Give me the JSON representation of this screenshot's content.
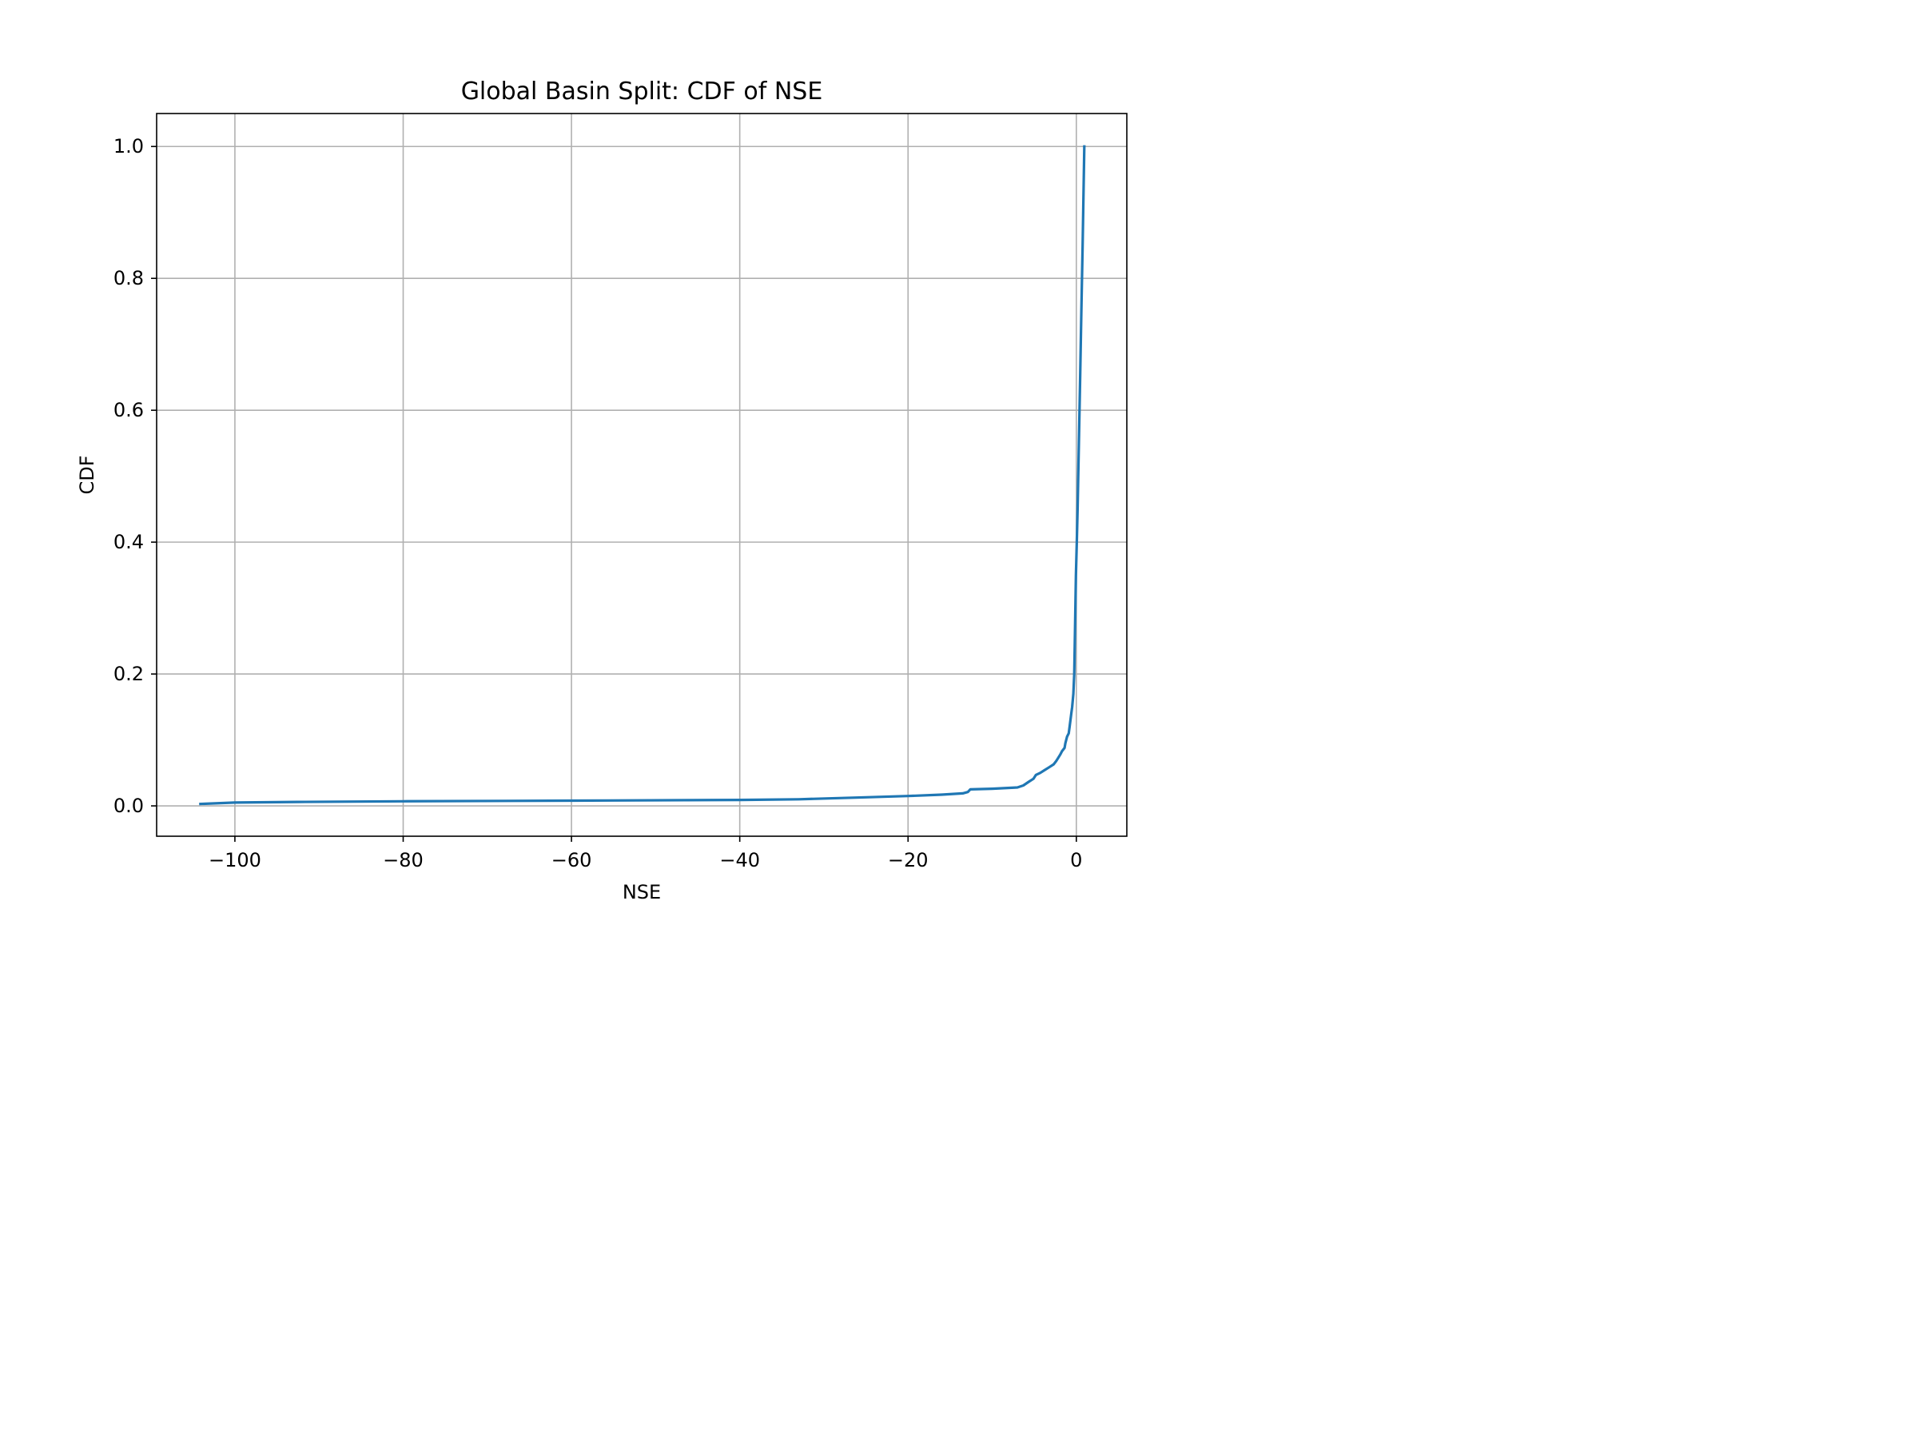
{
  "chart_data": {
    "type": "line",
    "title": "Global Basin Split: CDF of NSE",
    "xlabel": "NSE",
    "ylabel": "CDF",
    "xlim": [
      -109.3,
      6.0
    ],
    "ylim": [
      -0.046,
      1.05
    ],
    "xticks": [
      -100,
      -80,
      -60,
      -40,
      -20,
      0
    ],
    "xtick_labels": [
      "−100",
      "−80",
      "−60",
      "−40",
      "−20",
      "0"
    ],
    "yticks": [
      0.0,
      0.2,
      0.4,
      0.6,
      0.8,
      1.0
    ],
    "ytick_labels": [
      "0.0",
      "0.2",
      "0.4",
      "0.6",
      "0.8",
      "1.0"
    ],
    "grid": true,
    "series": [
      {
        "color": "#1f77b4",
        "x": [
          -104.1,
          -100.0,
          -92.6,
          -80.0,
          -60.0,
          -40.0,
          -33.0,
          -25.0,
          -20.0,
          -16.0,
          -13.5,
          -12.9,
          -12.6,
          -10.0,
          -7.0,
          -6.3,
          -5.6,
          -5.1,
          -4.8,
          -4.3,
          -3.8,
          -3.3,
          -2.7,
          -2.4,
          -2.2,
          -1.9,
          -1.7,
          -1.4,
          -1.3,
          -1.1,
          -0.9,
          -0.8,
          -0.6,
          -0.5,
          -0.35,
          -0.25,
          -0.15,
          -0.05,
          0.05,
          0.15,
          0.3,
          0.45,
          0.6,
          0.75,
          0.88,
          0.95
        ],
        "y": [
          0.003,
          0.005,
          0.006,
          0.007,
          0.008,
          0.009,
          0.01,
          0.013,
          0.015,
          0.017,
          0.019,
          0.021,
          0.025,
          0.026,
          0.028,
          0.031,
          0.037,
          0.041,
          0.047,
          0.05,
          0.054,
          0.058,
          0.063,
          0.068,
          0.072,
          0.078,
          0.083,
          0.088,
          0.095,
          0.105,
          0.11,
          0.12,
          0.14,
          0.15,
          0.17,
          0.2,
          0.27,
          0.35,
          0.4,
          0.45,
          0.55,
          0.65,
          0.75,
          0.85,
          0.95,
          1.0
        ]
      }
    ]
  }
}
